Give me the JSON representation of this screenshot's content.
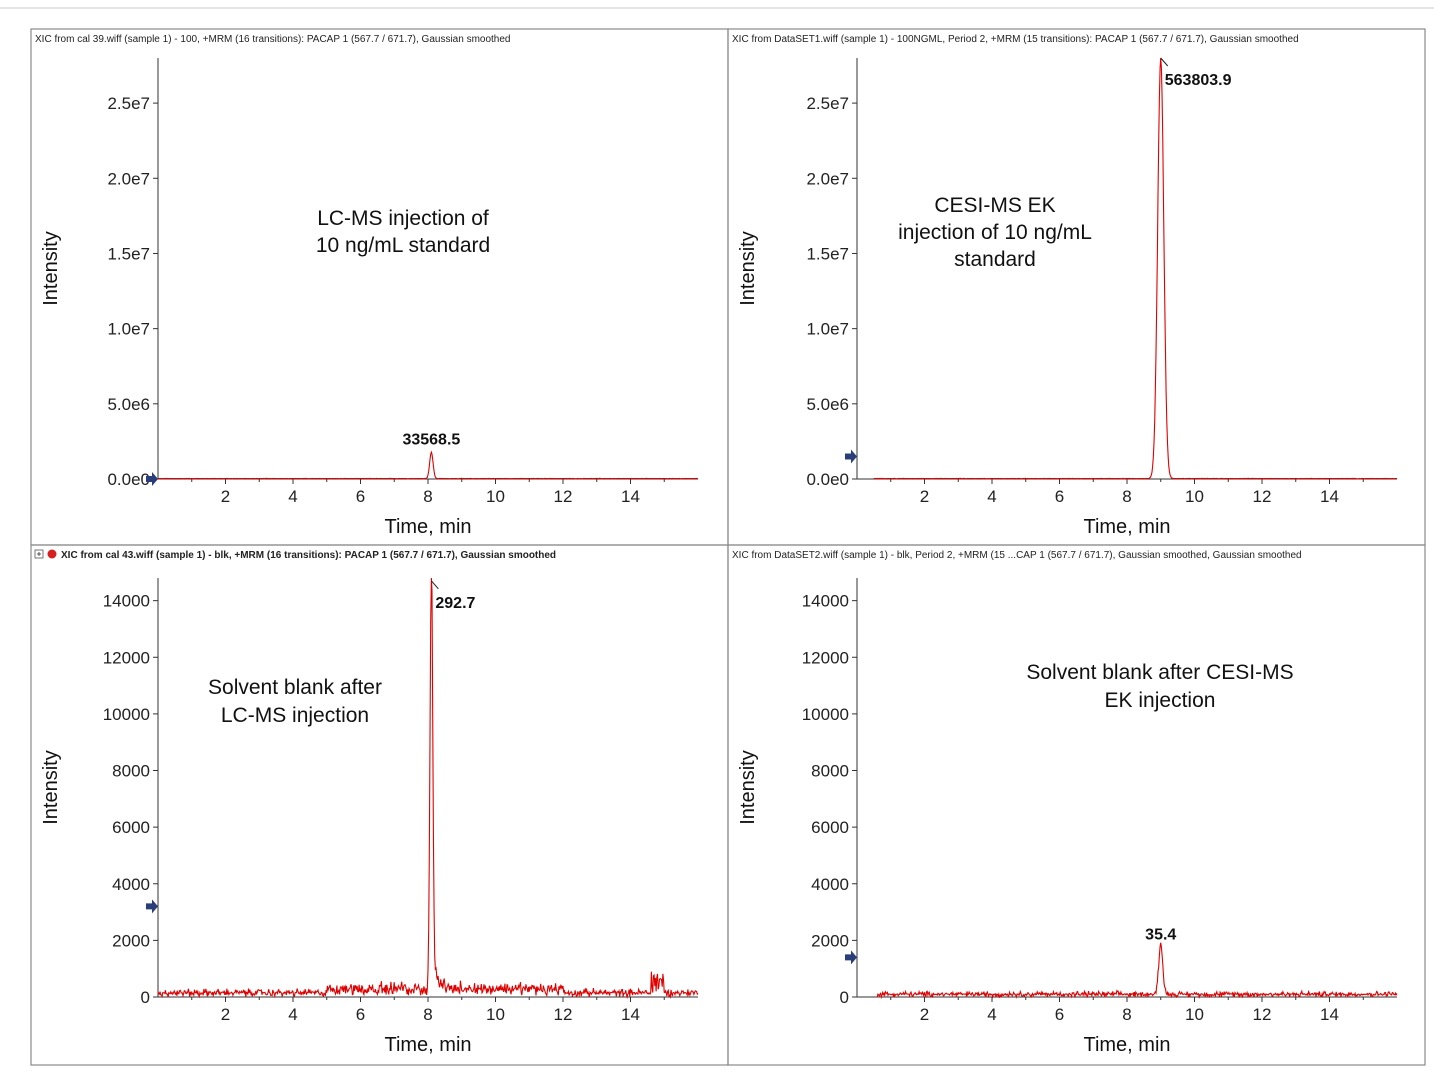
{
  "figure": {
    "marker_color": "#2a3f7a",
    "trace_color": "#e00000"
  },
  "chart_data": [
    {
      "type": "line",
      "header": "XIC from cal 39.wiff (sample 1) - 100, +MRM (16 transitions): PACAP 1 (567.7 / 671.7), Gaussian smoothed",
      "header_bold": false,
      "header_icons": false,
      "xlabel": "Time, min",
      "ylabel": "Intensity",
      "xlim": [
        0,
        16
      ],
      "ylim": [
        0,
        28000000
      ],
      "xticks": [
        2,
        4,
        6,
        8,
        10,
        12,
        14
      ],
      "xtick_labels": [
        "2",
        "4",
        "6",
        "8",
        "10",
        "12",
        "14"
      ],
      "yticks": [
        0,
        5000000,
        10000000,
        15000000,
        20000000,
        25000000
      ],
      "ytick_labels": [
        "0.0e0",
        "5.0e6",
        "1.0e7",
        "1.5e7",
        "2.0e7",
        "2.5e7"
      ],
      "annotation": [
        "LC-MS injection of",
        "10 ng/mL standard"
      ],
      "peak": {
        "label": "33568.5",
        "rt": 8.1,
        "height": 1750000,
        "width": 0.05
      },
      "baseline": 30000,
      "noise": 20000,
      "trace_start": 0,
      "peak_marker": false,
      "y_marker": {
        "value": 0
      }
    },
    {
      "type": "line",
      "header": "XIC from DataSET1.wiff (sample 1) - 100NGML, Period 2, +MRM (15 transitions): PACAP 1 (567.7 / 671.7), Gaussian smoothed",
      "header_bold": false,
      "header_icons": false,
      "xlabel": "Time, min",
      "ylabel": "Intensity",
      "xlim": [
        0,
        16
      ],
      "ylim": [
        0,
        28000000
      ],
      "xticks": [
        2,
        4,
        6,
        8,
        10,
        12,
        14
      ],
      "xtick_labels": [
        "2",
        "4",
        "6",
        "8",
        "10",
        "12",
        "14"
      ],
      "yticks": [
        0,
        5000000,
        10000000,
        15000000,
        20000000,
        25000000
      ],
      "ytick_labels": [
        "0.0e0",
        "5.0e6",
        "1.0e7",
        "1.5e7",
        "2.0e7",
        "2.5e7"
      ],
      "annotation": [
        "CESI-MS EK",
        "injection of 10 ng/mL",
        "standard"
      ],
      "peak": {
        "label": "563803.9",
        "rt": 9.0,
        "height": 28000000,
        "width": 0.09
      },
      "baseline": 30000,
      "noise": 20000,
      "trace_start": 0.5,
      "peak_marker": true,
      "y_marker": {
        "value": 1500000
      }
    },
    {
      "type": "line",
      "header": "XIC from cal 43.wiff (sample 1) - blk, +MRM (16 transitions): PACAP 1 (567.7 / 671.7), Gaussian smoothed",
      "header_bold": true,
      "header_icons": true,
      "xlabel": "Time, min",
      "ylabel": "Intensity",
      "xlim": [
        0,
        16
      ],
      "ylim": [
        0,
        14800
      ],
      "xticks": [
        2,
        4,
        6,
        8,
        10,
        12,
        14
      ],
      "xtick_labels": [
        "2",
        "4",
        "6",
        "8",
        "10",
        "12",
        "14"
      ],
      "yticks": [
        0,
        2000,
        4000,
        6000,
        8000,
        10000,
        12000,
        14000
      ],
      "ytick_labels": [
        "0",
        "2000",
        "4000",
        "6000",
        "8000",
        "10000",
        "12000",
        "14000"
      ],
      "annotation": [
        "Solvent blank after",
        "LC-MS injection"
      ],
      "peak": {
        "label": "292.7",
        "rt": 8.1,
        "height": 14700,
        "width": 0.04
      },
      "baseline": 150,
      "noise": 180,
      "trace_start": 0,
      "peak_marker": true,
      "y_marker": {
        "value": 3200
      }
    },
    {
      "type": "line",
      "header": "XIC from DataSET2.wiff (sample 1) - blk, Period 2, +MRM (15 ...CAP 1 (567.7 / 671.7), Gaussian smoothed, Gaussian smoothed",
      "header_bold": false,
      "header_icons": false,
      "xlabel": "Time, min",
      "ylabel": "Intensity",
      "xlim": [
        0,
        16
      ],
      "ylim": [
        0,
        14800
      ],
      "xticks": [
        2,
        4,
        6,
        8,
        10,
        12,
        14
      ],
      "xtick_labels": [
        "2",
        "4",
        "6",
        "8",
        "10",
        "12",
        "14"
      ],
      "yticks": [
        0,
        2000,
        4000,
        6000,
        8000,
        10000,
        12000,
        14000
      ],
      "ytick_labels": [
        "0",
        "2000",
        "4000",
        "6000",
        "8000",
        "10000",
        "12000",
        "14000"
      ],
      "annotation": [
        "Solvent blank after CESI-MS",
        "EK injection"
      ],
      "peak": {
        "label": "35.4",
        "rt": 9.0,
        "height": 1750,
        "width": 0.06
      },
      "baseline": 100,
      "noise": 130,
      "trace_start": 0.6,
      "peak_marker": false,
      "y_marker": {
        "value": 1400
      }
    }
  ]
}
